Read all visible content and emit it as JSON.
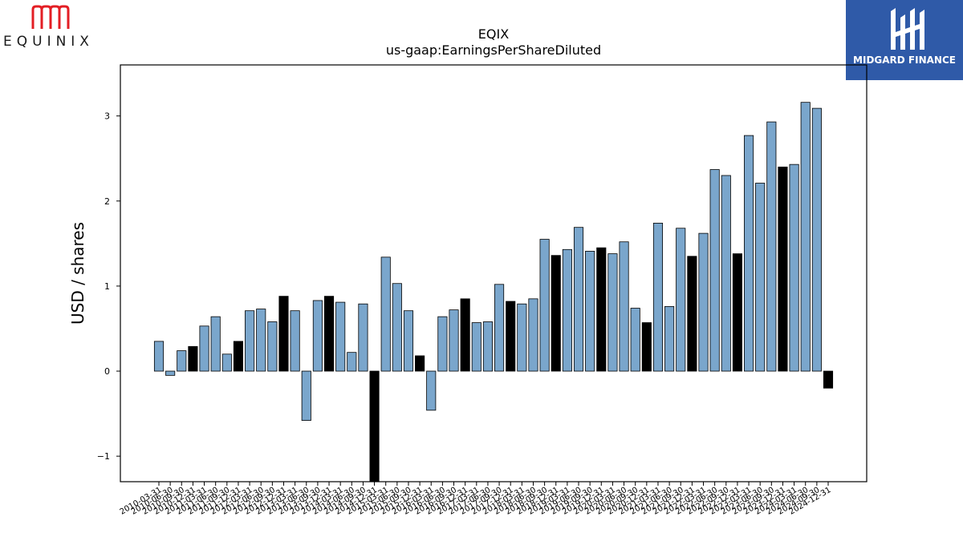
{
  "brand_left": "EQUINIX",
  "brand_right": "MIDGARD FINANCE",
  "colors": {
    "bar_default": "#7aa6cc",
    "bar_highlight": "#000000",
    "logo_left": "#e31e24",
    "logo_right_bg": "#2f5aa8"
  },
  "chart_data": {
    "type": "bar",
    "title": "EQIX",
    "subtitle": "us-gaap:EarningsPerShareDiluted",
    "ylabel": "USD / shares",
    "xlabel": "",
    "ylim": [
      -1.3,
      3.6
    ],
    "yticks": [
      -1,
      0,
      1,
      2,
      3
    ],
    "categories": [
      "2010-03-31",
      "2010-06-30",
      "2010-09-30",
      "2010-12-31",
      "2011-03-31",
      "2011-06-30",
      "2011-09-30",
      "2011-12-31",
      "2012-03-31",
      "2012-06-30",
      "2012-09-30",
      "2012-12-31",
      "2013-03-31",
      "2013-06-30",
      "2013-09-30",
      "2013-12-31",
      "2014-03-31",
      "2014-06-30",
      "2014-09-30",
      "2014-12-31",
      "2015-03-31",
      "2015-06-30",
      "2015-09-30",
      "2015-12-31",
      "2016-03-31",
      "2016-06-30",
      "2016-09-30",
      "2016-12-31",
      "2017-03-31",
      "2017-06-30",
      "2017-09-30",
      "2017-12-31",
      "2018-03-31",
      "2018-06-30",
      "2018-09-30",
      "2018-12-31",
      "2019-03-31",
      "2019-06-30",
      "2019-09-30",
      "2019-12-31",
      "2020-03-31",
      "2020-06-30",
      "2020-09-30",
      "2020-12-31",
      "2021-03-31",
      "2021-06-30",
      "2021-09-30",
      "2021-12-31",
      "2022-03-31",
      "2022-06-30",
      "2022-09-30",
      "2022-12-31",
      "2023-03-31",
      "2023-06-30",
      "2023-09-30",
      "2023-12-31",
      "2024-03-31",
      "2024-06-30",
      "2024-09-30",
      "2024-12-31"
    ],
    "values": [
      0.35,
      -0.05,
      0.24,
      0.29,
      0.53,
      0.64,
      0.2,
      0.35,
      0.71,
      0.73,
      0.58,
      0.88,
      0.71,
      -0.58,
      0.83,
      0.88,
      0.81,
      0.22,
      0.79,
      -1.4,
      1.34,
      1.03,
      0.71,
      0.18,
      -0.46,
      0.64,
      0.72,
      0.85,
      0.57,
      0.58,
      1.02,
      0.82,
      0.79,
      0.85,
      1.55,
      1.36,
      1.43,
      1.69,
      1.41,
      1.45,
      1.38,
      1.52,
      0.74,
      0.57,
      1.74,
      0.76,
      1.68,
      1.35,
      1.62,
      2.37,
      2.3,
      1.38,
      2.77,
      2.21,
      2.93,
      2.4,
      2.43,
      3.16,
      3.09,
      -0.2
    ],
    "highlight": [
      false,
      false,
      false,
      true,
      false,
      false,
      false,
      true,
      false,
      false,
      false,
      true,
      false,
      false,
      false,
      true,
      false,
      false,
      false,
      true,
      false,
      false,
      false,
      true,
      false,
      false,
      false,
      true,
      false,
      false,
      false,
      true,
      false,
      false,
      false,
      true,
      false,
      false,
      false,
      true,
      false,
      false,
      false,
      true,
      false,
      false,
      false,
      true,
      false,
      false,
      false,
      true,
      false,
      false,
      false,
      true,
      false,
      false,
      false,
      true
    ]
  }
}
